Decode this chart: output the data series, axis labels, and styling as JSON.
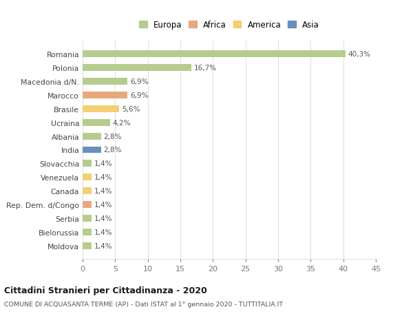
{
  "countries": [
    "Romania",
    "Polonia",
    "Macedonia d/N.",
    "Marocco",
    "Brasile",
    "Ucraina",
    "Albania",
    "India",
    "Slovacchia",
    "Venezuela",
    "Canada",
    "Rep. Dem. d/Congo",
    "Serbia",
    "Bielorussia",
    "Moldova"
  ],
  "values": [
    40.3,
    16.7,
    6.9,
    6.9,
    5.6,
    4.2,
    2.8,
    2.8,
    1.4,
    1.4,
    1.4,
    1.4,
    1.4,
    1.4,
    1.4
  ],
  "labels": [
    "40,3%",
    "16,7%",
    "6,9%",
    "6,9%",
    "5,6%",
    "4,2%",
    "2,8%",
    "2,8%",
    "1,4%",
    "1,4%",
    "1,4%",
    "1,4%",
    "1,4%",
    "1,4%",
    "1,4%"
  ],
  "colors": [
    "#b5cc8e",
    "#b5cc8e",
    "#b5cc8e",
    "#e8a87c",
    "#f2cf72",
    "#b5cc8e",
    "#b5cc8e",
    "#6a8fbf",
    "#b5cc8e",
    "#f2cf72",
    "#f2cf72",
    "#e8a87c",
    "#b5cc8e",
    "#b5cc8e",
    "#b5cc8e"
  ],
  "legend_labels": [
    "Europa",
    "Africa",
    "America",
    "Asia"
  ],
  "legend_colors": [
    "#b5cc8e",
    "#e8a87c",
    "#f2cf72",
    "#6a8fbf"
  ],
  "xlim": [
    0,
    45
  ],
  "xticks": [
    0,
    5,
    10,
    15,
    20,
    25,
    30,
    35,
    40,
    45
  ],
  "title": "Cittadini Stranieri per Cittadinanza - 2020",
  "subtitle": "COMUNE DI ACQUASANTA TERME (AP) - Dati ISTAT al 1° gennaio 2020 - TUTTITALIA.IT",
  "bg_color": "#ffffff",
  "grid_color": "#e0e0e0",
  "bar_height": 0.5
}
